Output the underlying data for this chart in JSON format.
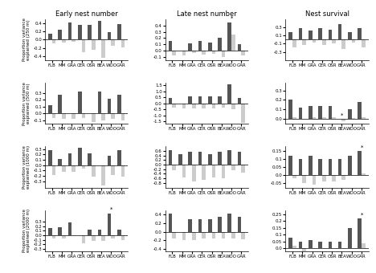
{
  "col_titles": [
    "Early nest number",
    "Late nest number",
    "Nest survival"
  ],
  "row_labels": [
    "FLB",
    "MM",
    "GRA",
    "CER",
    "OSR",
    "BEA",
    "WOO",
    "GAR"
  ],
  "dark_color": "#555555",
  "light_color": "#cccccc",
  "panels": [
    {
      "row": 0,
      "col": 0,
      "ylabel": "Proportion variance\nexplained (250 m)",
      "ylim": [
        -0.5,
        0.5
      ],
      "yticks": [
        -0.4,
        -0.2,
        0.0,
        0.2,
        0.4
      ],
      "dark_vals": [
        0.15,
        0.25,
        0.42,
        0.35,
        0.35,
        0.45,
        0.18,
        0.38
      ],
      "light_vals": [
        -0.1,
        -0.08,
        -0.05,
        -0.3,
        -0.25,
        -0.45,
        -0.15,
        -0.18
      ],
      "asterisk": []
    },
    {
      "row": 0,
      "col": 1,
      "ylabel": "",
      "ylim": [
        -0.15,
        0.5
      ],
      "yticks": [
        -0.1,
        0.0,
        0.1,
        0.2,
        0.3,
        0.4
      ],
      "dark_vals": [
        0.15,
        0.0,
        0.12,
        0.15,
        0.13,
        0.2,
        0.45,
        0.1
      ],
      "light_vals": [
        -0.07,
        -0.07,
        -0.04,
        -0.06,
        -0.05,
        -0.1,
        0.25,
        -0.07
      ],
      "asterisk": [
        6
      ]
    },
    {
      "row": 0,
      "col": 2,
      "ylabel": "",
      "ylim": [
        -0.5,
        0.5
      ],
      "yticks": [
        -0.3,
        -0.1,
        0.1,
        0.3
      ],
      "dark_vals": [
        0.18,
        0.28,
        0.22,
        0.28,
        0.25,
        0.38,
        0.18,
        0.28
      ],
      "light_vals": [
        -0.18,
        -0.12,
        -0.08,
        -0.12,
        -0.1,
        -0.22,
        -0.08,
        -0.18
      ],
      "asterisk": []
    },
    {
      "row": 1,
      "col": 0,
      "ylabel": "Proportion variance\nexplained (500 m)",
      "ylim": [
        -0.15,
        0.45
      ],
      "yticks": [
        -0.1,
        0.0,
        0.1,
        0.2,
        0.3
      ],
      "dark_vals": [
        0.12,
        0.28,
        0.0,
        0.32,
        0.0,
        0.32,
        0.22,
        0.28
      ],
      "light_vals": [
        -0.06,
        -0.08,
        -0.08,
        -0.06,
        -0.12,
        -0.1,
        -0.08,
        -0.1
      ],
      "asterisk": []
    },
    {
      "row": 1,
      "col": 1,
      "ylabel": "",
      "ylim": [
        -1.7,
        1.7
      ],
      "yticks": [
        -1.5,
        -1.0,
        -0.5,
        0.0,
        0.5,
        1.0,
        1.5
      ],
      "dark_vals": [
        0.45,
        0.0,
        0.55,
        0.55,
        0.55,
        0.55,
        1.55,
        0.45
      ],
      "light_vals": [
        -0.35,
        -0.45,
        -0.45,
        -0.4,
        -0.45,
        -0.35,
        -0.5,
        -1.6
      ],
      "asterisk": []
    },
    {
      "row": 1,
      "col": 2,
      "ylabel": "",
      "ylim": [
        -0.05,
        0.38
      ],
      "yticks": [
        0.0,
        0.1,
        0.2,
        0.3
      ],
      "dark_vals": [
        0.2,
        0.12,
        0.14,
        0.14,
        0.14,
        0.0,
        0.1,
        0.18
      ],
      "light_vals": [
        0.02,
        0.0,
        0.02,
        0.02,
        0.02,
        -0.02,
        0.01,
        0.02
      ],
      "asterisk": [
        5
      ]
    },
    {
      "row": 2,
      "col": 0,
      "ylabel": "Proportion variance\nexplained (1000 m)",
      "ylim": [
        -0.42,
        0.35
      ],
      "yticks": [
        -0.3,
        -0.2,
        -0.1,
        0.0,
        0.1,
        0.2,
        0.3
      ],
      "dark_vals": [
        0.28,
        0.12,
        0.22,
        0.32,
        0.22,
        0.0,
        0.18,
        0.28
      ],
      "light_vals": [
        -0.18,
        -0.12,
        -0.12,
        -0.06,
        -0.22,
        -0.38,
        -0.18,
        -0.22
      ],
      "asterisk": []
    },
    {
      "row": 2,
      "col": 1,
      "ylabel": "",
      "ylim": [
        -1.0,
        0.8
      ],
      "yticks": [
        -0.8,
        -0.6,
        -0.4,
        -0.2,
        0.0,
        0.2,
        0.4,
        0.6
      ],
      "dark_vals": [
        0.65,
        0.45,
        0.55,
        0.55,
        0.45,
        0.55,
        0.65,
        0.55
      ],
      "light_vals": [
        -0.25,
        -0.55,
        -0.75,
        -0.65,
        -0.55,
        -0.6,
        -0.25,
        -0.35
      ],
      "asterisk": []
    },
    {
      "row": 2,
      "col": 2,
      "ylabel": "",
      "ylim": [
        -0.08,
        0.18
      ],
      "yticks": [
        -0.05,
        0.0,
        0.05,
        0.1,
        0.15
      ],
      "dark_vals": [
        0.12,
        0.1,
        0.12,
        0.1,
        0.1,
        0.1,
        0.12,
        0.15
      ],
      "light_vals": [
        -0.02,
        -0.05,
        -0.06,
        -0.04,
        -0.04,
        -0.03,
        0.0,
        0.01
      ],
      "asterisk": [
        7
      ]
    },
    {
      "row": 3,
      "col": 0,
      "ylabel": "Proportion variance\nexplained (2000 m)",
      "ylim": [
        -0.35,
        0.55
      ],
      "yticks": [
        -0.3,
        -0.2,
        -0.1,
        0.0,
        0.1,
        0.2,
        0.3
      ],
      "dark_vals": [
        0.15,
        0.18,
        0.28,
        0.0,
        0.12,
        0.12,
        0.48,
        0.12
      ],
      "light_vals": [
        -0.08,
        -0.08,
        0.0,
        -0.18,
        -0.12,
        -0.12,
        -0.08,
        -0.1
      ],
      "asterisk": [
        6
      ]
    },
    {
      "row": 3,
      "col": 1,
      "ylabel": "",
      "ylim": [
        -0.45,
        0.5
      ],
      "yticks": [
        -0.4,
        -0.2,
        0.0,
        0.2,
        0.4
      ],
      "dark_vals": [
        0.42,
        0.0,
        0.28,
        0.28,
        0.28,
        0.35,
        0.42,
        0.35
      ],
      "light_vals": [
        -0.15,
        -0.2,
        -0.2,
        -0.15,
        -0.15,
        -0.15,
        -0.15,
        -0.18
      ],
      "asterisk": []
    },
    {
      "row": 3,
      "col": 2,
      "ylabel": "",
      "ylim": [
        -0.02,
        0.28
      ],
      "yticks": [
        0.0,
        0.05,
        0.1,
        0.15,
        0.2,
        0.25
      ],
      "dark_vals": [
        0.08,
        0.05,
        0.06,
        0.05,
        0.05,
        0.05,
        0.15,
        0.22
      ],
      "light_vals": [
        0.02,
        -0.02,
        0.0,
        0.0,
        0.0,
        0.0,
        0.0,
        0.04
      ],
      "asterisk": [
        7
      ]
    }
  ]
}
